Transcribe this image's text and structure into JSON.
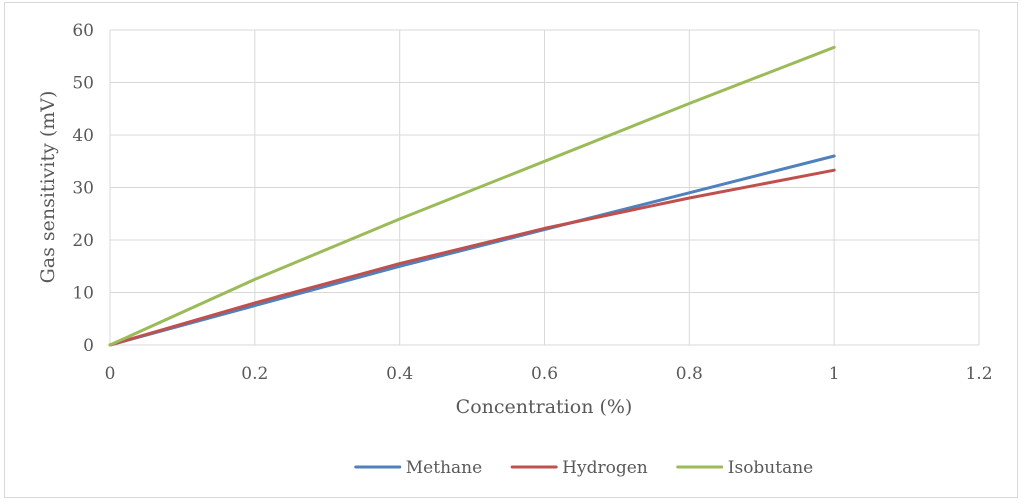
{
  "chart_data": {
    "type": "line",
    "title": "",
    "xlabel": "Concentration (%)",
    "ylabel": "Gas sensitivity (mV)",
    "xlim": [
      0,
      1.2
    ],
    "ylim": [
      0,
      60
    ],
    "x_ticks": [
      0,
      0.2,
      0.4,
      0.6,
      0.8,
      1,
      1.2
    ],
    "x_tick_labels": [
      "0",
      "0.2",
      "0.4",
      "0.6",
      "0.8",
      "1",
      "1.2"
    ],
    "y_ticks": [
      0,
      10,
      20,
      30,
      40,
      50,
      60
    ],
    "y_tick_labels": [
      "0",
      "10",
      "20",
      "30",
      "40",
      "50",
      "60"
    ],
    "grid": true,
    "legend_position": "bottom",
    "series": [
      {
        "name": "Methane",
        "color": "#4f81bd",
        "x": [
          0,
          0.2,
          0.4,
          0.6,
          0.8,
          1
        ],
        "values": [
          0,
          7.5,
          15,
          22,
          29,
          36
        ]
      },
      {
        "name": "Hydrogen",
        "color": "#c0504d",
        "x": [
          0,
          0.2,
          0.4,
          0.6,
          0.8,
          1
        ],
        "values": [
          0,
          8,
          15.5,
          22.2,
          28,
          33.3
        ]
      },
      {
        "name": "Isobutane",
        "color": "#9bbb59",
        "x": [
          0,
          0.2,
          0.4,
          0.6,
          0.8,
          1
        ],
        "values": [
          0,
          12.5,
          24,
          35,
          46,
          56.7
        ]
      }
    ]
  }
}
